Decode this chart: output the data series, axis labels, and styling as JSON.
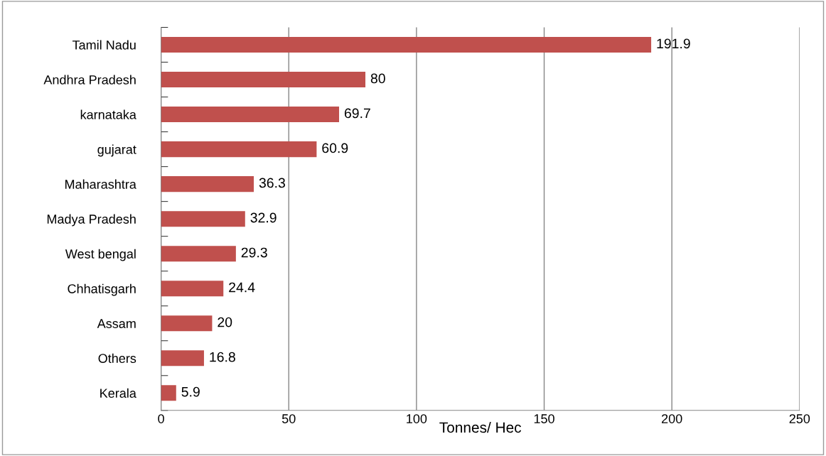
{
  "chart_data": {
    "type": "bar",
    "orientation": "horizontal",
    "xlabel": "Tonnes/ Hec",
    "categories": [
      "Tamil Nadu",
      "Andhra Pradesh",
      "karnataka",
      "gujarat",
      "Maharashtra",
      "Madya Pradesh",
      "West bengal",
      "Chhatisgarh",
      "Assam",
      "Others",
      "Kerala"
    ],
    "values": [
      191.9,
      80,
      69.7,
      60.9,
      36.3,
      32.9,
      29.3,
      24.4,
      20,
      16.8,
      5.9
    ],
    "color": "#c0504d",
    "xlim": [
      0,
      250
    ],
    "xticks": [
      0,
      50,
      100,
      150,
      200,
      250
    ],
    "grid": "x",
    "data_labels": true
  }
}
